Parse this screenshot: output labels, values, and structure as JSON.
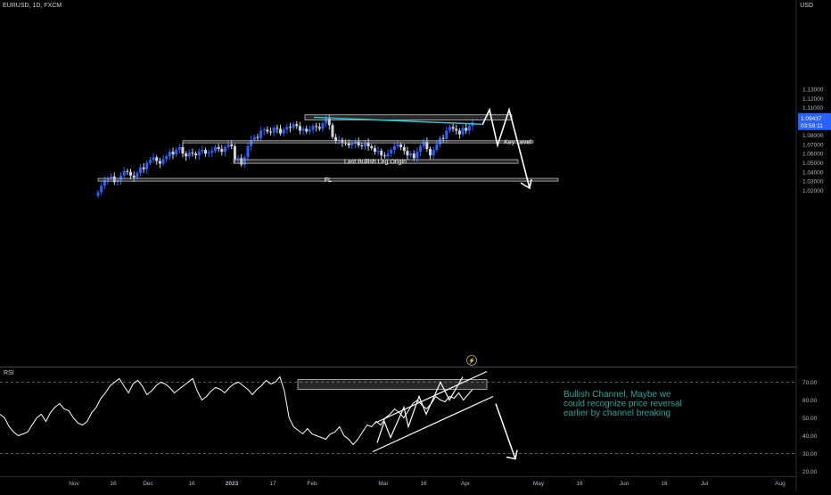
{
  "header": {
    "symbol": "EURUSD, 1D, FXCM",
    "currency": "USD"
  },
  "price_tag": {
    "value": "1.09437",
    "timer": "03:59:11"
  },
  "rsi": {
    "label": "RSI"
  },
  "annotations": {
    "key_level": "Key Level",
    "last_bullish": "Last Bullish Leg Origin",
    "fl": "FL",
    "note_lines": [
      "Bullish Channel, Maybe we",
      "could recognize price reversal",
      "earlier by channel breaking"
    ]
  },
  "colors": {
    "bull": "#2962ff",
    "bear": "#d1d4dc",
    "trendline": "#26c6da",
    "note": "#26a69a",
    "box_border": "#c0c0c0"
  },
  "chart_data": [
    {
      "type": "candlestick",
      "title": "EURUSD, 1D, FXCM",
      "ylabel": "USD",
      "ylim": [
        1.0135,
        1.1395
      ],
      "y_ticks": [
        "1.13000",
        "1.12000",
        "1.11000",
        "1.10000",
        "1.09000",
        "1.08000",
        "1.07000",
        "1.06000",
        "1.05000",
        "1.04000",
        "1.03000",
        "1.02000"
      ],
      "x_ticks": [
        "Nov",
        "16",
        "Dec",
        "16",
        "2023",
        "17",
        "Feb",
        "Mar",
        "16",
        "Apr",
        "May",
        "16",
        "Jun",
        "16",
        "Jul",
        "Aug"
      ],
      "last_price": 1.09437,
      "close_path": [
        1.018,
        1.025,
        1.031,
        1.033,
        1.035,
        1.029,
        1.031,
        1.036,
        1.041,
        1.04,
        1.036,
        1.034,
        1.039,
        1.045,
        1.043,
        1.05,
        1.053,
        1.056,
        1.052,
        1.049,
        1.054,
        1.057,
        1.062,
        1.059,
        1.064,
        1.067,
        1.06,
        1.057,
        1.061,
        1.06,
        1.058,
        1.062,
        1.064,
        1.06,
        1.061,
        1.063,
        1.067,
        1.065,
        1.062,
        1.067,
        1.07,
        1.068,
        1.054,
        1.055,
        1.048,
        1.056,
        1.068,
        1.075,
        1.078,
        1.077,
        1.085,
        1.086,
        1.084,
        1.083,
        1.088,
        1.087,
        1.082,
        1.086,
        1.089,
        1.088,
        1.092,
        1.09,
        1.085,
        1.087,
        1.084,
        1.086,
        1.09,
        1.089,
        1.087,
        1.093,
        1.098,
        1.091,
        1.078,
        1.074,
        1.075,
        1.072,
        1.071,
        1.069,
        1.071,
        1.073,
        1.069,
        1.068,
        1.072,
        1.068,
        1.066,
        1.062,
        1.063,
        1.058,
        1.057,
        1.06,
        1.064,
        1.068,
        1.07,
        1.067,
        1.063,
        1.058,
        1.06,
        1.055,
        1.062,
        1.068,
        1.073,
        1.065,
        1.058,
        1.064,
        1.07,
        1.077,
        1.076,
        1.085,
        1.089,
        1.087,
        1.085,
        1.081,
        1.088,
        1.085,
        1.09,
        1.094
      ],
      "zones": [
        {
          "label": "",
          "price_range": [
            1.0966,
            1.1022
          ]
        },
        {
          "label": "Key Level",
          "price_range": [
            1.0717,
            1.074
          ]
        },
        {
          "label": "Last Bullish Leg Origin",
          "price_range": [
            1.0494,
            1.0534
          ]
        },
        {
          "label": "FL",
          "price_range": [
            1.03,
            1.033
          ]
        }
      ]
    },
    {
      "type": "line",
      "title": "RSI",
      "ylim": [
        15,
        78
      ],
      "y_ticks": [
        "70.00",
        "60.00",
        "50.00",
        "40.00",
        "30.00",
        "20.00"
      ],
      "levels": [
        70,
        30
      ],
      "values": [
        52,
        50,
        45,
        42,
        40,
        41,
        42,
        46,
        50,
        52,
        48,
        53,
        56,
        58,
        55,
        54,
        50,
        47,
        46,
        48,
        53,
        56,
        61,
        64,
        68,
        70,
        72,
        68,
        64,
        69,
        71,
        68,
        63,
        65,
        68,
        70,
        69,
        67,
        64,
        66,
        68,
        70,
        72,
        65,
        60,
        62,
        65,
        67,
        66,
        64,
        67,
        69,
        70,
        68,
        66,
        63,
        66,
        68,
        71,
        69,
        70,
        73,
        65,
        50,
        45,
        43,
        41,
        44,
        41,
        40,
        39,
        38,
        41,
        42,
        45,
        40,
        38,
        35,
        38,
        42,
        46,
        45,
        48,
        46,
        50,
        52,
        55,
        53,
        50,
        54,
        58,
        60,
        57,
        55,
        58,
        62,
        60,
        59,
        62,
        61,
        64,
        60,
        63,
        66
      ]
    }
  ]
}
